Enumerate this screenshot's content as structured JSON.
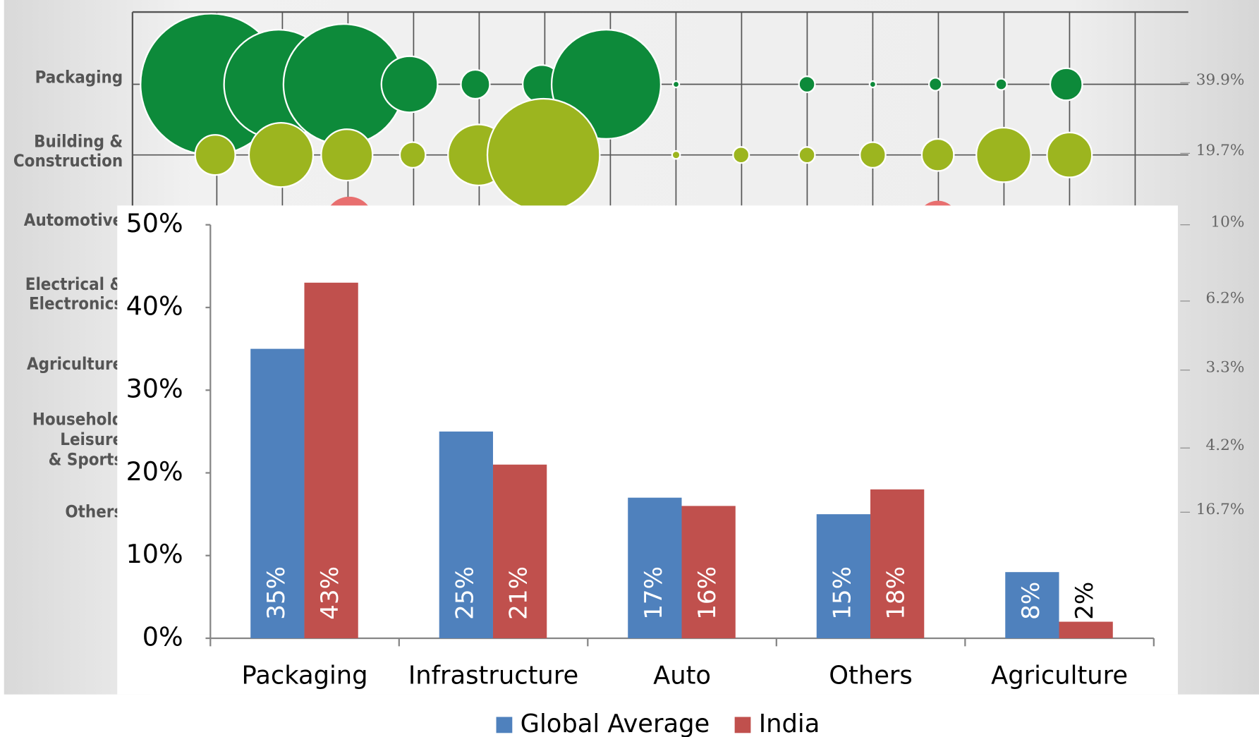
{
  "background": {
    "row_labels": [
      [
        "Packaging"
      ],
      [
        "Building &",
        "Construction"
      ],
      [
        "Automotive"
      ],
      [
        "Electrical &",
        "Electronics"
      ],
      [
        "Agriculture"
      ],
      [
        "Household",
        "Leisure",
        "& Sports"
      ],
      [
        "Others"
      ]
    ],
    "row_values": [
      "39.9%",
      "19.7%",
      "10%",
      "6.2%",
      "3.3%",
      "4.2%",
      "16.7%"
    ]
  },
  "chart_data": {
    "type": "bar",
    "categories": [
      "Packaging",
      "Infrastructure",
      "Auto",
      "Others",
      "Agriculture"
    ],
    "series": [
      {
        "name": "Global Average",
        "color": "#4f81bd",
        "values": [
          35,
          25,
          17,
          15,
          8
        ],
        "value_labels": [
          "35%",
          "25%",
          "17%",
          "15%",
          "8%"
        ]
      },
      {
        "name": "India",
        "color": "#c0504d",
        "values": [
          43,
          21,
          16,
          18,
          2
        ],
        "value_labels": [
          "43%",
          "21%",
          "16%",
          "18%",
          "2%"
        ]
      }
    ],
    "ylim": [
      0,
      50
    ],
    "yticks": [
      {
        "value": 0,
        "label": "0%"
      },
      {
        "value": 10,
        "label": "10%"
      },
      {
        "value": 20,
        "label": "20%"
      },
      {
        "value": 30,
        "label": "30%"
      },
      {
        "value": 40,
        "label": "40%"
      },
      {
        "value": 50,
        "label": "50%"
      }
    ],
    "legend": "bottom"
  }
}
